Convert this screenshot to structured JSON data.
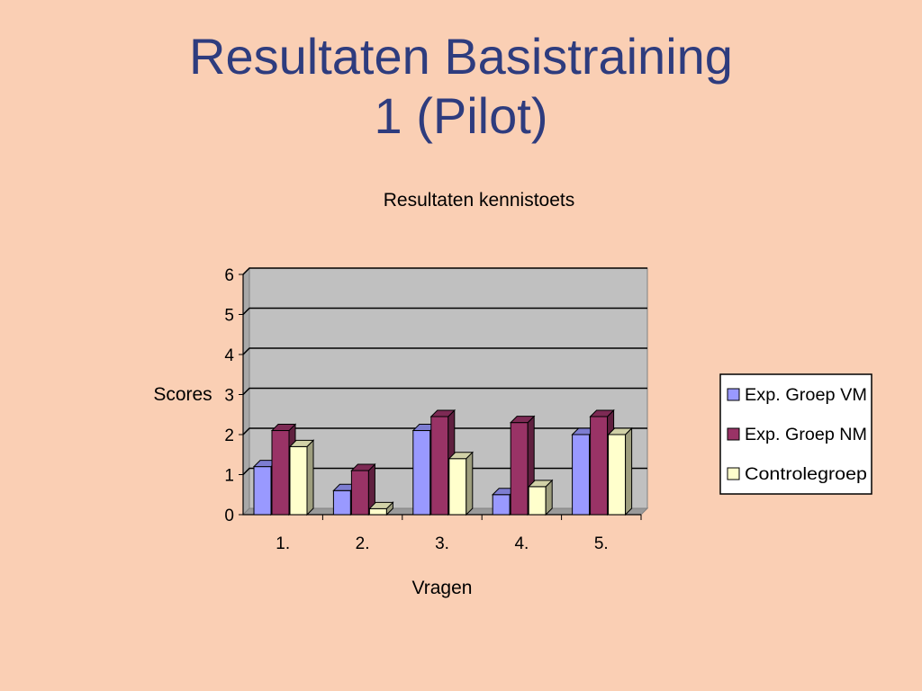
{
  "slide": {
    "title_line1": "Resultaten Basistraining",
    "title_line2": "1 (Pilot)"
  },
  "colors": {
    "background": "#FACFB4",
    "title": "#2E3C7E",
    "plot_area": "#C0C0C0"
  },
  "chart_data": {
    "type": "bar",
    "style": "3d-clustered",
    "title": "Resultaten kennistoets",
    "xlabel": "Vragen",
    "ylabel": "Scores",
    "ylim": [
      0,
      6
    ],
    "yticks": [
      "0",
      "1",
      "2",
      "3",
      "4",
      "5",
      "6"
    ],
    "grid": true,
    "legend_position": "right",
    "categories": [
      "1.",
      "2.",
      "3.",
      "4.",
      "5."
    ],
    "series": [
      {
        "name": "Exp. Groep VM",
        "color": "#9999FF",
        "values": [
          1.2,
          0.6,
          2.1,
          0.5,
          2.0
        ]
      },
      {
        "name": "Exp. Groep NM",
        "color": "#993366",
        "values": [
          2.1,
          1.1,
          2.45,
          2.3,
          2.45
        ]
      },
      {
        "name": "Controlegroep",
        "color": "#FFFFCC",
        "values": [
          1.7,
          0.15,
          1.4,
          0.7,
          2.0
        ]
      }
    ]
  }
}
